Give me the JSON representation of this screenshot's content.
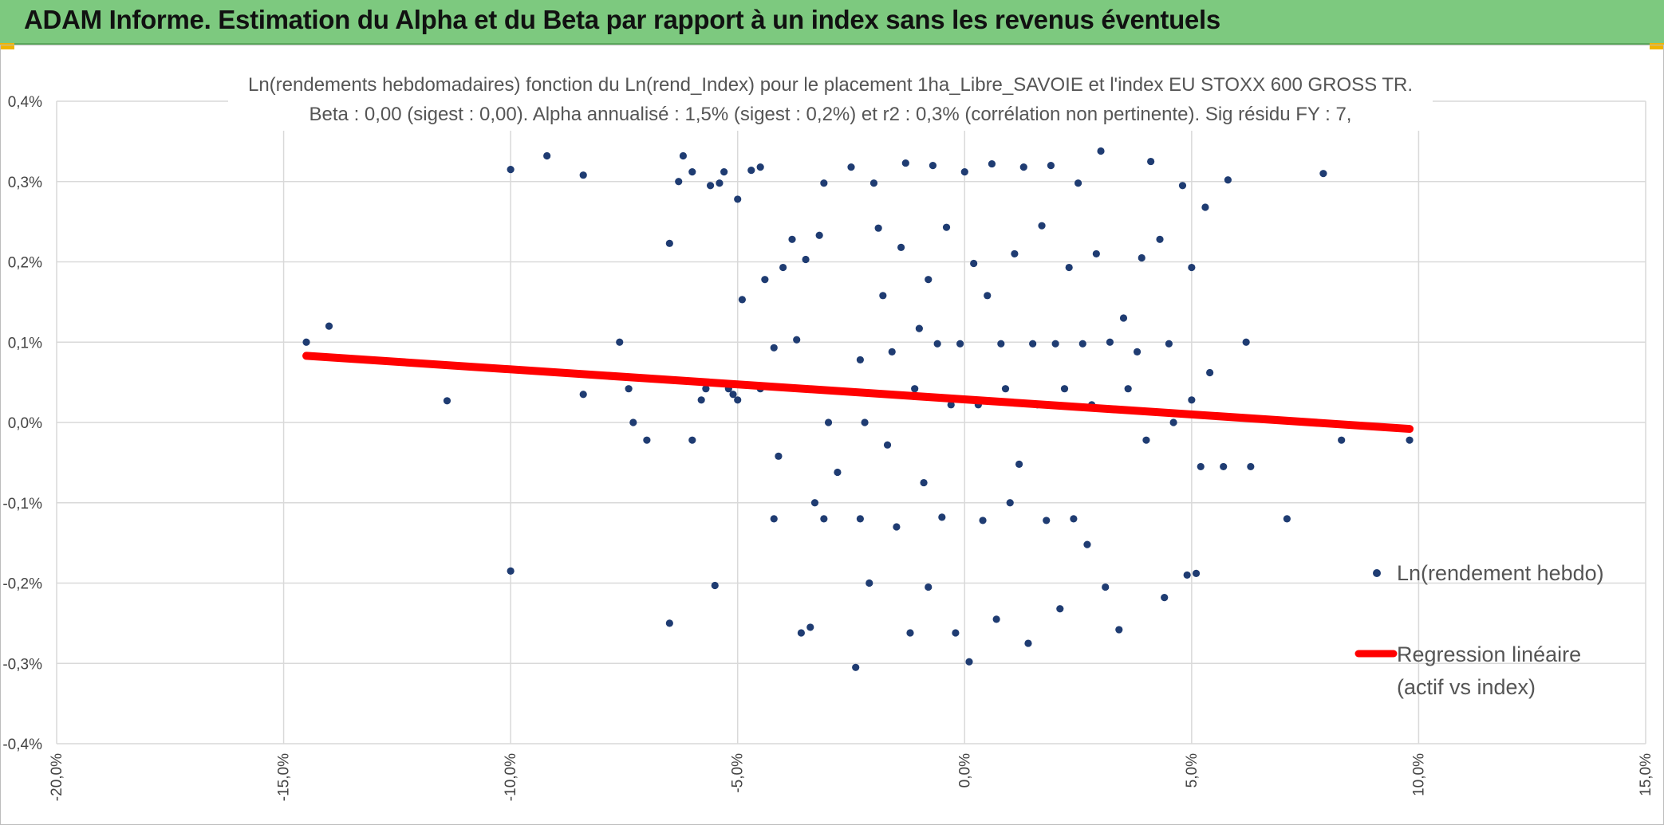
{
  "header": {
    "title": "ADAM Informe. Estimation du Alpha et du Beta par rapport à un index sans les revenus éventuels"
  },
  "colors": {
    "header_bg": "#7dc97f",
    "points": "#1f3c72",
    "regression": "#ff0000",
    "grid": "#d9d9d9"
  },
  "chart_data": {
    "type": "scatter",
    "title": "Ln(rendements hebdomadaires) fonction du Ln(rend_Index) pour le placement 1ha_Libre_SAVOIE et l'index EU STOXX 600 GROSS TR.",
    "subtitle": "Beta : 0,00 (sigest : 0,00). Alpha annualisé : 1,5% (sigest : 0,2%) et r2 : 0,3% (corrélation non pertinente). Sig résidu FY : 7,",
    "xlim": [
      -0.2,
      0.15
    ],
    "ylim": [
      -0.004,
      0.004
    ],
    "x_ticks": [
      -0.2,
      -0.15,
      -0.1,
      -0.05,
      0.0,
      0.05,
      0.1,
      0.15
    ],
    "x_tick_labels": [
      "-20,0%",
      "-15,0%",
      "-10,0%",
      "-5,0%",
      "0,0%",
      "5,0%",
      "10,0%",
      "15,0%"
    ],
    "y_ticks": [
      0.004,
      0.003,
      0.002,
      0.001,
      0.0,
      -0.001,
      -0.002,
      -0.003,
      -0.004
    ],
    "y_tick_labels": [
      "0,4%",
      "0,3%",
      "0,2%",
      "0,1%",
      "0,0%",
      "-0,1%",
      "-0,2%",
      "-0,3%",
      "-0,4%"
    ],
    "grid": true,
    "legend_position": "right",
    "series": [
      {
        "name": "Ln(rendement hebdo)",
        "kind": "scatter",
        "points": [
          [
            -0.145,
            0.001
          ],
          [
            -0.14,
            0.0012
          ],
          [
            -0.114,
            0.00027
          ],
          [
            -0.1,
            0.00315
          ],
          [
            -0.1,
            -0.00185
          ],
          [
            -0.092,
            0.00332
          ],
          [
            -0.084,
            0.00308
          ],
          [
            -0.084,
            0.00035
          ],
          [
            -0.076,
            0.001
          ],
          [
            -0.074,
            0.00042
          ],
          [
            -0.073,
            0.0
          ],
          [
            -0.07,
            -0.00022
          ],
          [
            -0.065,
            0.00223
          ],
          [
            -0.065,
            -0.0025
          ],
          [
            -0.063,
            0.003
          ],
          [
            -0.062,
            0.00332
          ],
          [
            -0.06,
            0.00312
          ],
          [
            -0.06,
            -0.00022
          ],
          [
            -0.058,
            0.00028
          ],
          [
            -0.057,
            0.00042
          ],
          [
            -0.056,
            0.00295
          ],
          [
            -0.055,
            -0.00203
          ],
          [
            -0.054,
            0.00298
          ],
          [
            -0.053,
            0.00312
          ],
          [
            -0.052,
            0.00042
          ],
          [
            -0.051,
            0.00035
          ],
          [
            -0.05,
            0.00278
          ],
          [
            -0.05,
            0.00028
          ],
          [
            -0.049,
            0.00153
          ],
          [
            -0.047,
            0.00314
          ],
          [
            -0.045,
            0.00318
          ],
          [
            -0.045,
            0.00042
          ],
          [
            -0.044,
            0.00178
          ],
          [
            -0.042,
            0.00093
          ],
          [
            -0.042,
            -0.0012
          ],
          [
            -0.041,
            -0.00042
          ],
          [
            -0.04,
            0.00193
          ],
          [
            -0.038,
            0.00228
          ],
          [
            -0.037,
            0.00103
          ],
          [
            -0.036,
            -0.00262
          ],
          [
            -0.035,
            0.00203
          ],
          [
            -0.034,
            -0.00255
          ],
          [
            -0.033,
            -0.001
          ],
          [
            -0.032,
            0.00233
          ],
          [
            -0.031,
            0.00298
          ],
          [
            -0.031,
            -0.0012
          ],
          [
            -0.03,
            0.0
          ],
          [
            -0.028,
            -0.00062
          ],
          [
            -0.025,
            0.00318
          ],
          [
            -0.024,
            -0.00305
          ],
          [
            -0.023,
            0.00078
          ],
          [
            -0.023,
            -0.0012
          ],
          [
            -0.022,
            0.0
          ],
          [
            -0.021,
            -0.002
          ],
          [
            -0.02,
            0.00298
          ],
          [
            -0.019,
            0.00242
          ],
          [
            -0.018,
            0.00158
          ],
          [
            -0.017,
            -0.00028
          ],
          [
            -0.016,
            0.00088
          ],
          [
            -0.015,
            -0.0013
          ],
          [
            -0.014,
            0.00218
          ],
          [
            -0.013,
            0.00323
          ],
          [
            -0.012,
            -0.00262
          ],
          [
            -0.011,
            0.00042
          ],
          [
            -0.01,
            0.00117
          ],
          [
            -0.009,
            -0.00075
          ],
          [
            -0.008,
            0.00178
          ],
          [
            -0.008,
            -0.00205
          ],
          [
            -0.007,
            0.0032
          ],
          [
            -0.006,
            0.00098
          ],
          [
            -0.005,
            -0.00118
          ],
          [
            -0.004,
            0.00243
          ],
          [
            -0.003,
            0.00022
          ],
          [
            -0.002,
            -0.00262
          ],
          [
            -0.001,
            0.00098
          ],
          [
            0.0,
            0.00312
          ],
          [
            0.001,
            -0.00298
          ],
          [
            0.002,
            0.00198
          ],
          [
            0.003,
            0.00022
          ],
          [
            0.004,
            -0.00122
          ],
          [
            0.005,
            0.00158
          ],
          [
            0.006,
            0.00322
          ],
          [
            0.007,
            -0.00245
          ],
          [
            0.008,
            0.00098
          ],
          [
            0.009,
            0.00042
          ],
          [
            0.01,
            -0.001
          ],
          [
            0.011,
            0.0021
          ],
          [
            0.012,
            -0.00052
          ],
          [
            0.013,
            0.00318
          ],
          [
            0.014,
            -0.00275
          ],
          [
            0.015,
            0.00098
          ],
          [
            0.016,
            0.00022
          ],
          [
            0.017,
            0.00245
          ],
          [
            0.018,
            -0.00122
          ],
          [
            0.019,
            0.0032
          ],
          [
            0.02,
            0.00098
          ],
          [
            0.021,
            -0.00232
          ],
          [
            0.022,
            0.00042
          ],
          [
            0.023,
            0.00193
          ],
          [
            0.024,
            -0.0012
          ],
          [
            0.025,
            0.00298
          ],
          [
            0.026,
            0.00098
          ],
          [
            0.027,
            -0.00152
          ],
          [
            0.028,
            0.00022
          ],
          [
            0.029,
            0.0021
          ],
          [
            0.03,
            0.00338
          ],
          [
            0.031,
            -0.00205
          ],
          [
            0.032,
            0.001
          ],
          [
            0.034,
            -0.00258
          ],
          [
            0.035,
            0.0013
          ],
          [
            0.036,
            0.00042
          ],
          [
            0.038,
            0.00088
          ],
          [
            0.039,
            0.00205
          ],
          [
            0.04,
            -0.00022
          ],
          [
            0.041,
            0.00325
          ],
          [
            0.043,
            0.00228
          ],
          [
            0.044,
            -0.00218
          ],
          [
            0.045,
            0.00098
          ],
          [
            0.046,
            0.0
          ],
          [
            0.048,
            0.00295
          ],
          [
            0.049,
            -0.0019
          ],
          [
            0.05,
            0.00193
          ],
          [
            0.05,
            0.00028
          ],
          [
            0.051,
            -0.00188
          ],
          [
            0.052,
            -0.00055
          ],
          [
            0.053,
            0.00268
          ],
          [
            0.054,
            0.00062
          ],
          [
            0.057,
            -0.00055
          ],
          [
            0.058,
            0.00302
          ],
          [
            0.062,
            0.001
          ],
          [
            0.063,
            -0.00055
          ],
          [
            0.071,
            -0.0012
          ],
          [
            0.079,
            0.0031
          ],
          [
            0.083,
            -0.00022
          ],
          [
            0.098,
            -0.00022
          ]
        ]
      },
      {
        "name": "Regression linéaire (actif vs index)",
        "kind": "line",
        "points": [
          [
            -0.145,
            0.00083
          ],
          [
            0.098,
            -8e-05
          ]
        ]
      }
    ]
  },
  "legend": {
    "points_label": "Ln(rendement hebdo)",
    "regression_label_1": "Regression linéaire",
    "regression_label_2": "(actif vs index)"
  }
}
